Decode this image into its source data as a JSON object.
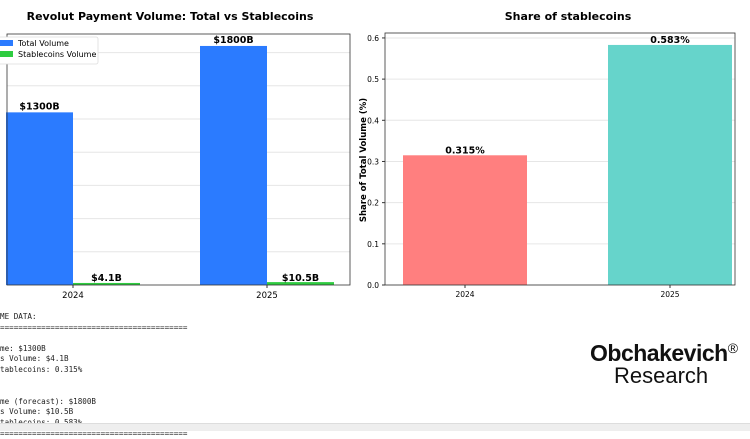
{
  "chart_data": [
    {
      "type": "bar",
      "title": "Revolut Payment Volume: Total vs Stablecoins",
      "categories": [
        "2024",
        "2025"
      ],
      "series": [
        {
          "name": "Total Volume",
          "values": [
            1300,
            1800
          ],
          "labels": [
            "$1300B",
            "$1800B"
          ],
          "color": "#2b7bff"
        },
        {
          "name": "Stablecoins Volume",
          "values": [
            4.1,
            10.5
          ],
          "labels": [
            "$4.1B",
            "$10.5B"
          ],
          "color": "#2ecc40"
        }
      ],
      "ylim": [
        0,
        1890
      ],
      "grid": true,
      "legend": "top-left",
      "xlabel": "",
      "ylabel": ""
    },
    {
      "type": "bar",
      "title": "Share of stablecoins",
      "categories": [
        "2024",
        "2025"
      ],
      "values": [
        0.315,
        0.583
      ],
      "labels": [
        "0.315%",
        "0.583%"
      ],
      "colors": [
        "#ff7f7f",
        "#66d4cb"
      ],
      "ylabel": "Share of Total Volume (%)",
      "yticks": [
        "0.0",
        "0.1",
        "0.2",
        "0.3",
        "0.4",
        "0.5",
        "0.6"
      ],
      "ylim": [
        0,
        0.612
      ],
      "grid": true
    }
  ],
  "console": [
    "ME DATA:",
    "=========================================",
    "",
    "me: $1300B",
    "s Volume: $4.1B",
    "tablecoins: 0.315%",
    "",
    "",
    "me (forecast): $1800B",
    "s Volume: $10.5B",
    "tablecoins: 0.583%",
    "========================================="
  ],
  "logo": {
    "line1": "Obchakevich",
    "mark": "®",
    "line2": "Research"
  }
}
